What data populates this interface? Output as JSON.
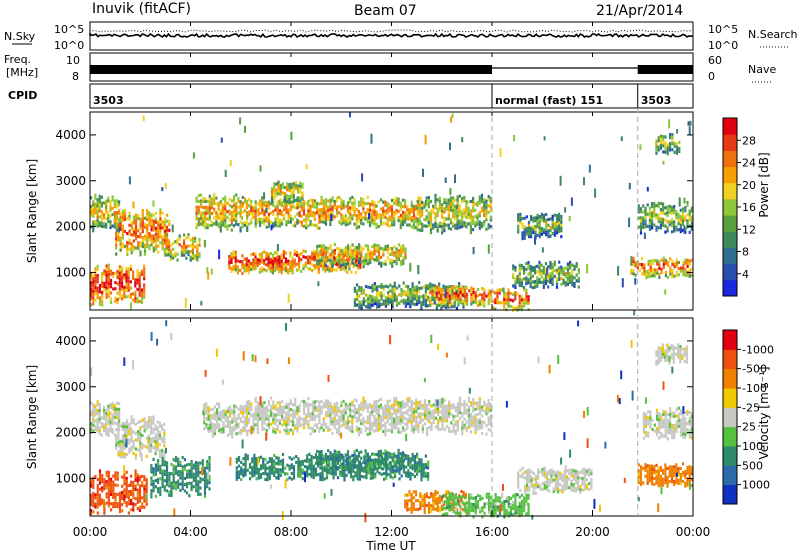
{
  "header": {
    "station": "Inuvik (fitACF)",
    "beam": "Beam 07",
    "date": "21/Apr/2014"
  },
  "top_panels": {
    "nsky_label": "N.Sky",
    "nsky_ticks": [
      "10^5",
      "10^0"
    ],
    "nsearch_label": "N.Search",
    "nsearch_ticks": [
      "10^5",
      "10^0"
    ],
    "freq_label": "Freq.",
    "freq_unit": "[MHz]",
    "freq_ticks": [
      "10",
      "8"
    ],
    "nave_label": "Nave",
    "nave_ticks": [
      "60",
      "0"
    ],
    "cpid_label": "CPID",
    "cpid_segments": [
      {
        "start_hour": 0,
        "end_hour": 16.0,
        "text": "3503"
      },
      {
        "start_hour": 16.0,
        "end_hour": 21.8,
        "text": "normal (fast) 151"
      },
      {
        "start_hour": 21.8,
        "end_hour": 24,
        "text": "3503"
      }
    ]
  },
  "chart_data": [
    {
      "type": "heatmap",
      "panel": "power",
      "ylabel": "Slant Range [km]",
      "ylim": [
        180,
        4500
      ],
      "xlim_hours": [
        0,
        24
      ],
      "yticks": [
        1000,
        2000,
        3000,
        4000
      ],
      "colorbar": {
        "label": "Power [dB]",
        "ticks": [
          4,
          8,
          12,
          16,
          20,
          24,
          28
        ],
        "colors": [
          "#1a28e0",
          "#2a4fb0",
          "#2f6f8f",
          "#3f8a5a",
          "#5aa040",
          "#8cc838",
          "#f0d020",
          "#f5a000",
          "#f07010",
          "#e83818",
          "#e00010"
        ]
      },
      "bands": [
        {
          "t0": 0.0,
          "t1": 2.2,
          "r0": 350,
          "r1": 1100,
          "level": 0.85
        },
        {
          "t0": 0.0,
          "t1": 1.2,
          "r0": 1950,
          "r1": 2650,
          "level": 0.45
        },
        {
          "t0": 1.0,
          "t1": 3.2,
          "r0": 1450,
          "r1": 2300,
          "level": 0.7
        },
        {
          "t0": 3.0,
          "t1": 4.4,
          "r0": 1300,
          "r1": 1800,
          "level": 0.55
        },
        {
          "t0": 4.2,
          "t1": 6.3,
          "r0": 1950,
          "r1": 2650,
          "level": 0.55
        },
        {
          "t0": 5.5,
          "t1": 10.8,
          "r0": 1000,
          "r1": 1450,
          "level": 0.8
        },
        {
          "t0": 6.2,
          "t1": 13.2,
          "r0": 2000,
          "r1": 2600,
          "level": 0.6
        },
        {
          "t0": 7.2,
          "t1": 8.5,
          "r0": 2500,
          "r1": 2950,
          "level": 0.45
        },
        {
          "t0": 9.0,
          "t1": 12.6,
          "r0": 1150,
          "r1": 1600,
          "level": 0.5
        },
        {
          "t0": 13.0,
          "t1": 16.0,
          "r0": 1900,
          "r1": 2650,
          "level": 0.4
        },
        {
          "t0": 10.5,
          "t1": 15.0,
          "r0": 250,
          "r1": 750,
          "level": 0.3
        },
        {
          "t0": 13.5,
          "t1": 16.0,
          "r0": 280,
          "r1": 700,
          "level": 0.7
        },
        {
          "t0": 16.0,
          "t1": 17.5,
          "r0": 180,
          "r1": 600,
          "level": 0.75
        },
        {
          "t0": 16.8,
          "t1": 19.5,
          "r0": 700,
          "r1": 1200,
          "level": 0.3
        },
        {
          "t0": 17.0,
          "t1": 18.8,
          "r0": 1750,
          "r1": 2250,
          "level": 0.2
        },
        {
          "t0": 21.5,
          "t1": 24.0,
          "r0": 900,
          "r1": 1300,
          "level": 0.65
        },
        {
          "t0": 21.8,
          "t1": 24.0,
          "r0": 1900,
          "r1": 2500,
          "level": 0.35
        },
        {
          "t0": 22.5,
          "t1": 23.5,
          "r0": 3600,
          "r1": 4000,
          "level": 0.3
        }
      ]
    },
    {
      "type": "heatmap",
      "panel": "velocity",
      "ylabel": "Slant Range [km]",
      "ylim": [
        180,
        4500
      ],
      "xlim_hours": [
        0,
        24
      ],
      "yticks": [
        1000,
        2000,
        3000,
        4000
      ],
      "colorbar": {
        "label": "Velocity [m s⁻¹]",
        "ticks": [
          "1000",
          "500",
          "100",
          "25",
          "-25",
          "-100",
          "-500",
          "-1000"
        ],
        "colors": [
          "#1030c0",
          "#2a6aa8",
          "#2f8a6a",
          "#56c040",
          "#c8c8c4",
          "#f0c800",
          "#f08000",
          "#f05010",
          "#e00010"
        ]
      },
      "bands": [
        {
          "t0": 0.0,
          "t1": 2.3,
          "r0": 300,
          "r1": 1100,
          "cls": 7
        },
        {
          "t0": 0.0,
          "t1": 1.2,
          "r0": 1950,
          "r1": 2650,
          "cls": 4
        },
        {
          "t0": 1.0,
          "t1": 3.0,
          "r0": 1500,
          "r1": 2300,
          "cls": 4
        },
        {
          "t0": 2.4,
          "t1": 4.8,
          "r0": 650,
          "r1": 1400,
          "cls": 2
        },
        {
          "t0": 4.5,
          "t1": 6.3,
          "r0": 1950,
          "r1": 2600,
          "cls": 4
        },
        {
          "t0": 5.8,
          "t1": 13.5,
          "r0": 1000,
          "r1": 1500,
          "cls": 2
        },
        {
          "t0": 6.2,
          "t1": 16.0,
          "r0": 2000,
          "r1": 2700,
          "cls": 4
        },
        {
          "t0": 9.0,
          "t1": 12.5,
          "r0": 1200,
          "r1": 1600,
          "cls": 2
        },
        {
          "t0": 12.5,
          "t1": 15.0,
          "r0": 250,
          "r1": 700,
          "cls": 6
        },
        {
          "t0": 14.0,
          "t1": 17.5,
          "r0": 180,
          "r1": 650,
          "cls": 3
        },
        {
          "t0": 17.0,
          "t1": 20.0,
          "r0": 700,
          "r1": 1200,
          "cls": 4
        },
        {
          "t0": 21.8,
          "t1": 24.0,
          "r0": 850,
          "r1": 1300,
          "cls": 6
        },
        {
          "t0": 22.0,
          "t1": 24.0,
          "r0": 1900,
          "r1": 2500,
          "cls": 4
        },
        {
          "t0": 22.5,
          "t1": 23.8,
          "r0": 3500,
          "r1": 3900,
          "cls": 4
        }
      ]
    }
  ],
  "x_axis": {
    "label": "Time UT",
    "ticks": [
      "00:00",
      "04:00",
      "08:00",
      "12:00",
      "16:00",
      "20:00",
      "00:00"
    ],
    "marker_hours": [
      16.0,
      21.8
    ]
  }
}
